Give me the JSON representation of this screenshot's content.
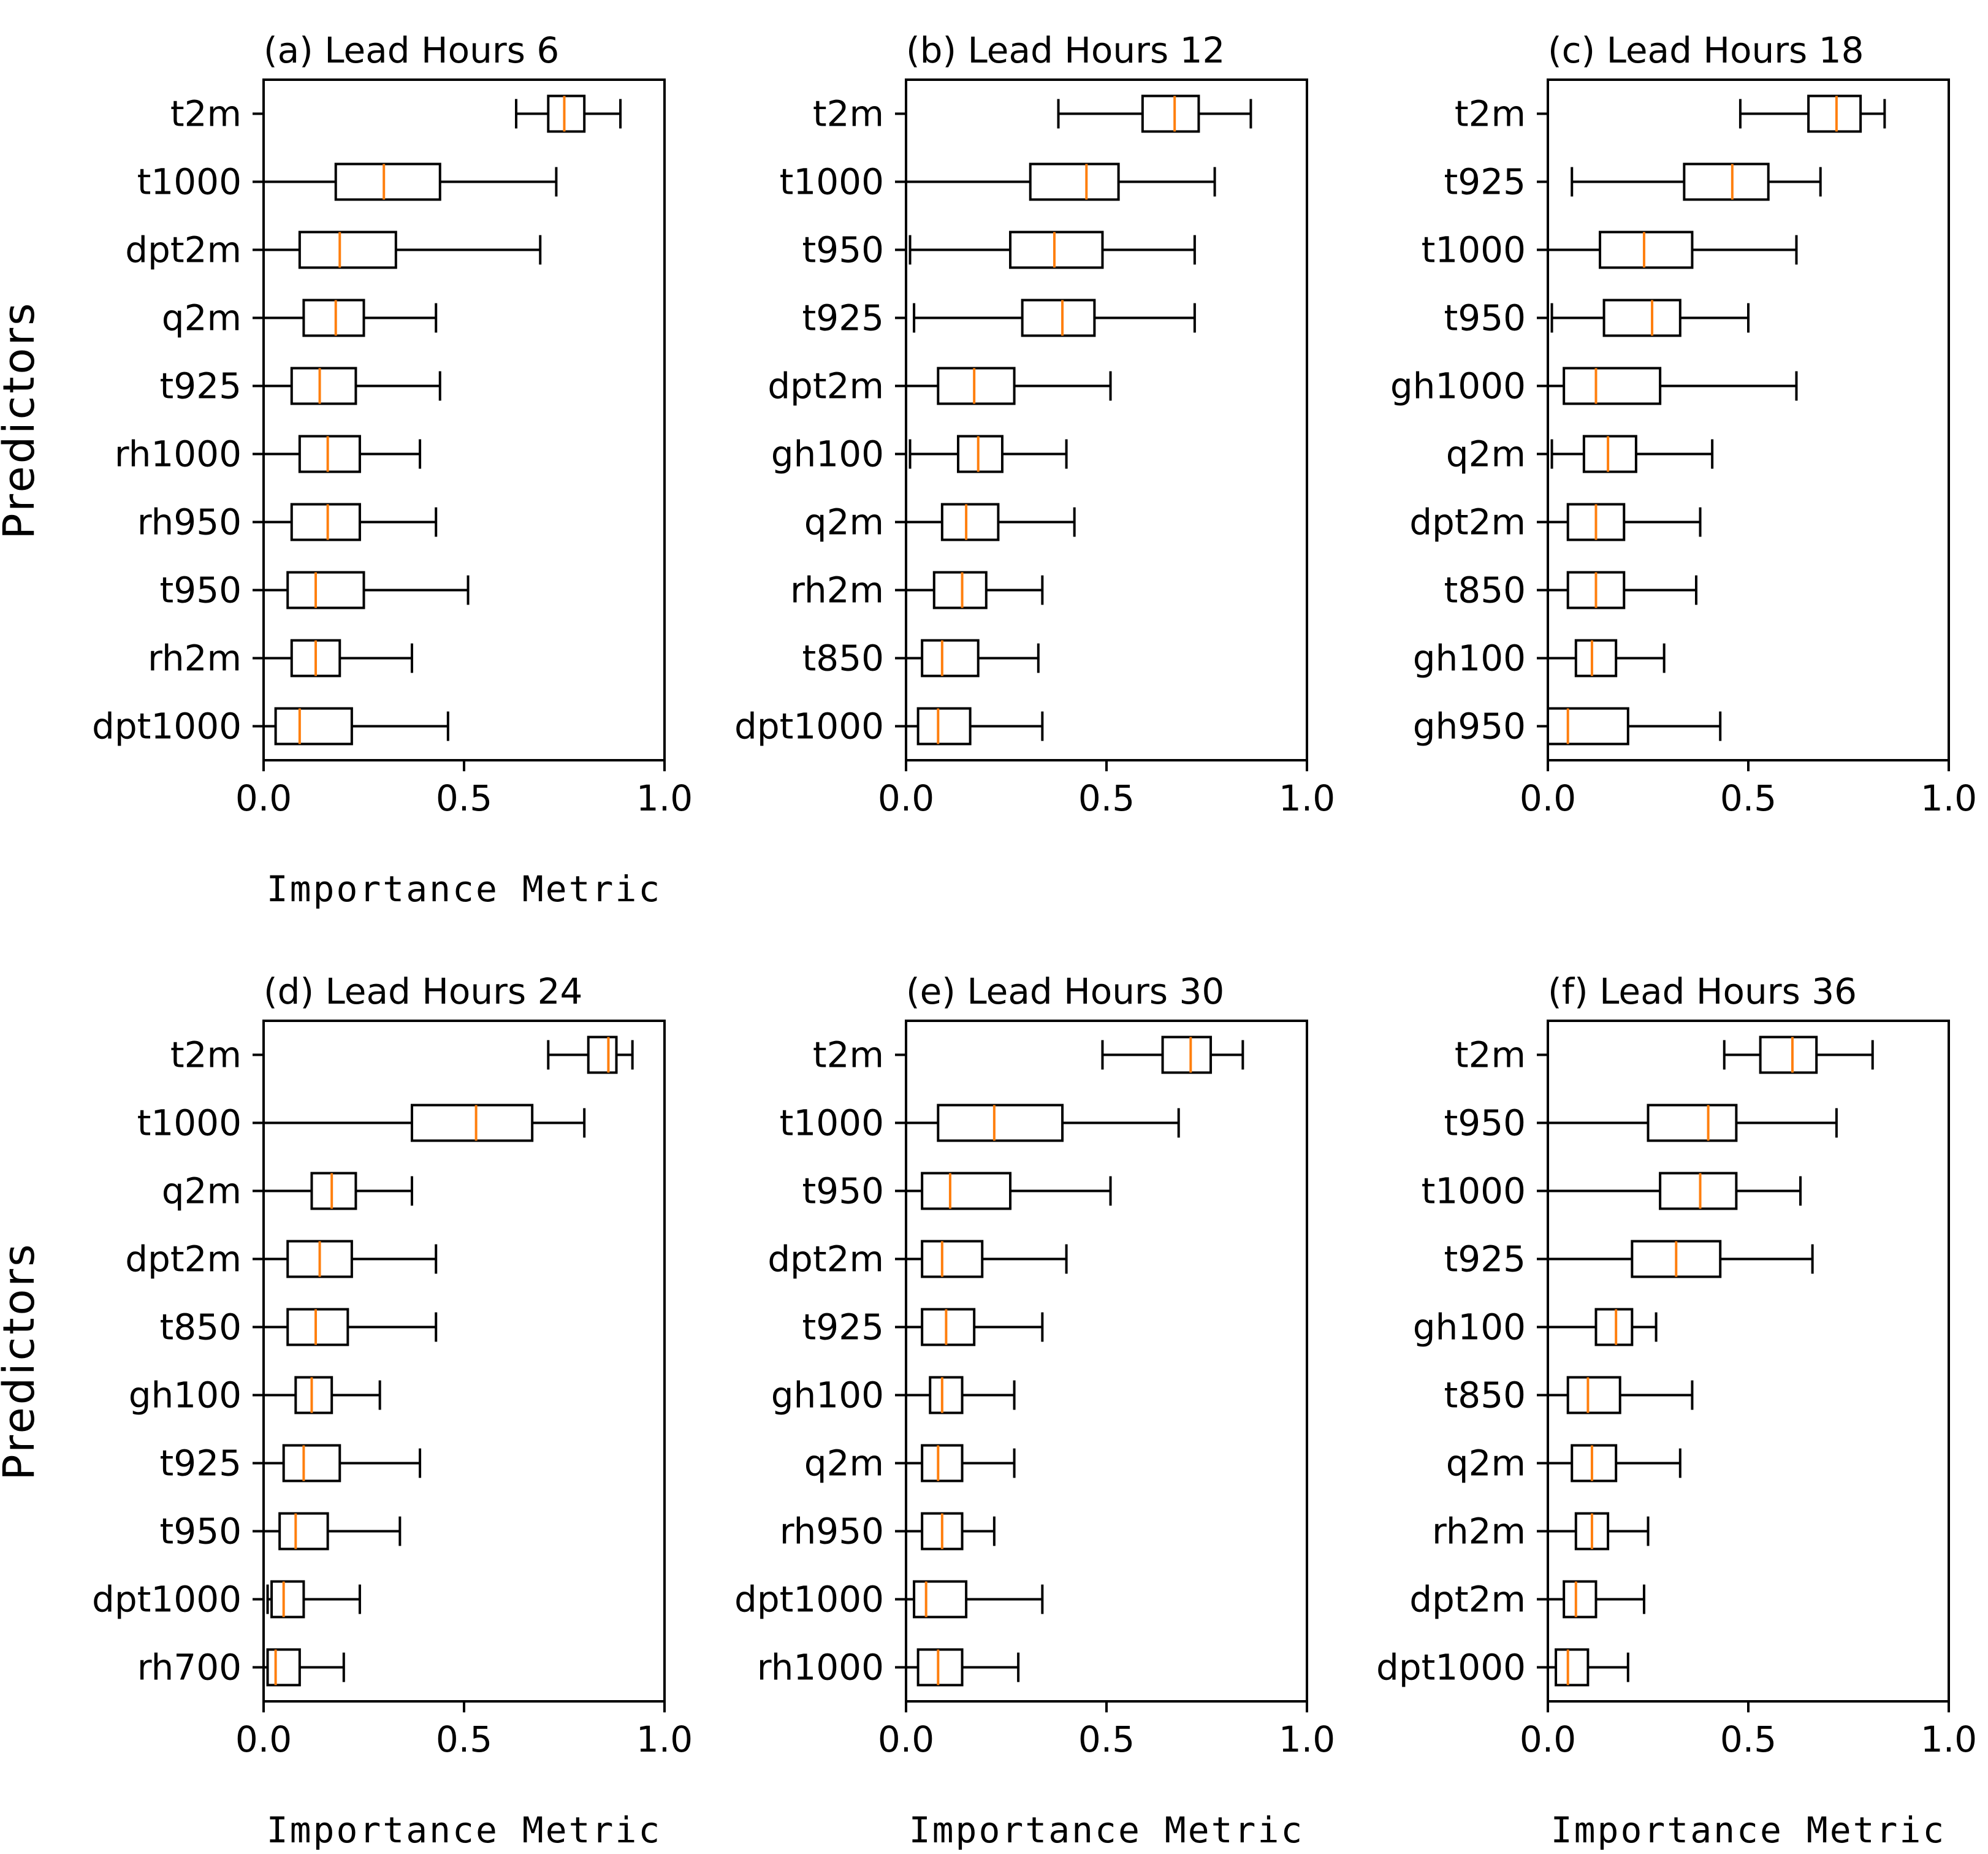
{
  "chart_data": [
    {
      "type": "boxplot",
      "title": "(a) Lead Hours 6",
      "xlabel": "Importance Metric",
      "ylabel": "Predictors",
      "xlim": [
        0,
        1
      ],
      "xticks": [
        "0.0",
        "0.5",
        "1.0"
      ],
      "categories": [
        "t2m",
        "t1000",
        "dpt2m",
        "q2m",
        "t925",
        "rh1000",
        "rh950",
        "t950",
        "rh2m",
        "dpt1000"
      ],
      "boxes": [
        {
          "whislo": 0.63,
          "q1": 0.71,
          "med": 0.75,
          "q3": 0.8,
          "whishi": 0.89
        },
        {
          "whislo": 0.0,
          "q1": 0.18,
          "med": 0.3,
          "q3": 0.44,
          "whishi": 0.73
        },
        {
          "whislo": 0.0,
          "q1": 0.09,
          "med": 0.19,
          "q3": 0.33,
          "whishi": 0.69
        },
        {
          "whislo": 0.0,
          "q1": 0.1,
          "med": 0.18,
          "q3": 0.25,
          "whishi": 0.43
        },
        {
          "whislo": 0.0,
          "q1": 0.07,
          "med": 0.14,
          "q3": 0.23,
          "whishi": 0.44
        },
        {
          "whislo": 0.0,
          "q1": 0.09,
          "med": 0.16,
          "q3": 0.24,
          "whishi": 0.39
        },
        {
          "whislo": 0.0,
          "q1": 0.07,
          "med": 0.16,
          "q3": 0.24,
          "whishi": 0.43
        },
        {
          "whislo": 0.0,
          "q1": 0.06,
          "med": 0.13,
          "q3": 0.25,
          "whishi": 0.51
        },
        {
          "whislo": 0.0,
          "q1": 0.07,
          "med": 0.13,
          "q3": 0.19,
          "whishi": 0.37
        },
        {
          "whislo": 0.0,
          "q1": 0.03,
          "med": 0.09,
          "q3": 0.22,
          "whishi": 0.46
        }
      ]
    },
    {
      "type": "boxplot",
      "title": "(b) Lead Hours 12",
      "xlabel": "",
      "ylabel": "",
      "xlim": [
        0,
        1
      ],
      "xticks": [
        "0.0",
        "0.5",
        "1.0"
      ],
      "categories": [
        "t2m",
        "t1000",
        "t950",
        "t925",
        "dpt2m",
        "gh100",
        "q2m",
        "rh2m",
        "t850",
        "dpt1000"
      ],
      "boxes": [
        {
          "whislo": 0.38,
          "q1": 0.59,
          "med": 0.67,
          "q3": 0.73,
          "whishi": 0.86
        },
        {
          "whislo": 0.0,
          "q1": 0.31,
          "med": 0.45,
          "q3": 0.53,
          "whishi": 0.77
        },
        {
          "whislo": 0.01,
          "q1": 0.26,
          "med": 0.37,
          "q3": 0.49,
          "whishi": 0.72
        },
        {
          "whislo": 0.02,
          "q1": 0.29,
          "med": 0.39,
          "q3": 0.47,
          "whishi": 0.72
        },
        {
          "whislo": 0.0,
          "q1": 0.08,
          "med": 0.17,
          "q3": 0.27,
          "whishi": 0.51
        },
        {
          "whislo": 0.01,
          "q1": 0.13,
          "med": 0.18,
          "q3": 0.24,
          "whishi": 0.4
        },
        {
          "whislo": 0.0,
          "q1": 0.09,
          "med": 0.15,
          "q3": 0.23,
          "whishi": 0.42
        },
        {
          "whislo": 0.0,
          "q1": 0.07,
          "med": 0.14,
          "q3": 0.2,
          "whishi": 0.34
        },
        {
          "whislo": 0.0,
          "q1": 0.04,
          "med": 0.09,
          "q3": 0.18,
          "whishi": 0.33
        },
        {
          "whislo": 0.0,
          "q1": 0.03,
          "med": 0.08,
          "q3": 0.16,
          "whishi": 0.34
        }
      ]
    },
    {
      "type": "boxplot",
      "title": "(c) Lead Hours 18",
      "xlabel": "",
      "ylabel": "",
      "xlim": [
        0,
        1
      ],
      "xticks": [
        "0.0",
        "0.5",
        "1.0"
      ],
      "categories": [
        "t2m",
        "t925",
        "t1000",
        "t950",
        "gh1000",
        "q2m",
        "dpt2m",
        "t850",
        "gh100",
        "gh950"
      ],
      "boxes": [
        {
          "whislo": 0.48,
          "q1": 0.65,
          "med": 0.72,
          "q3": 0.78,
          "whishi": 0.84
        },
        {
          "whislo": 0.06,
          "q1": 0.34,
          "med": 0.46,
          "q3": 0.55,
          "whishi": 0.68
        },
        {
          "whislo": 0.0,
          "q1": 0.13,
          "med": 0.24,
          "q3": 0.36,
          "whishi": 0.62
        },
        {
          "whislo": 0.01,
          "q1": 0.14,
          "med": 0.26,
          "q3": 0.33,
          "whishi": 0.5
        },
        {
          "whislo": 0.0,
          "q1": 0.04,
          "med": 0.12,
          "q3": 0.28,
          "whishi": 0.62
        },
        {
          "whislo": 0.01,
          "q1": 0.09,
          "med": 0.15,
          "q3": 0.22,
          "whishi": 0.41
        },
        {
          "whislo": 0.0,
          "q1": 0.05,
          "med": 0.12,
          "q3": 0.19,
          "whishi": 0.38
        },
        {
          "whislo": 0.0,
          "q1": 0.05,
          "med": 0.12,
          "q3": 0.19,
          "whishi": 0.37
        },
        {
          "whislo": 0.0,
          "q1": 0.07,
          "med": 0.11,
          "q3": 0.17,
          "whishi": 0.29
        },
        {
          "whislo": 0.0,
          "q1": 0.0,
          "med": 0.05,
          "q3": 0.2,
          "whishi": 0.43
        }
      ]
    },
    {
      "type": "boxplot",
      "title": "(d) Lead Hours 24",
      "xlabel": "Importance Metric",
      "ylabel": "Predictors",
      "xlim": [
        0,
        1
      ],
      "xticks": [
        "0.0",
        "0.5",
        "1.0"
      ],
      "categories": [
        "t2m",
        "t1000",
        "q2m",
        "dpt2m",
        "t850",
        "gh100",
        "t925",
        "t950",
        "dpt1000",
        "rh700"
      ],
      "boxes": [
        {
          "whislo": 0.71,
          "q1": 0.81,
          "med": 0.86,
          "q3": 0.88,
          "whishi": 0.92
        },
        {
          "whislo": 0.0,
          "q1": 0.37,
          "med": 0.53,
          "q3": 0.67,
          "whishi": 0.8
        },
        {
          "whislo": 0.0,
          "q1": 0.12,
          "med": 0.17,
          "q3": 0.23,
          "whishi": 0.37
        },
        {
          "whislo": 0.0,
          "q1": 0.06,
          "med": 0.14,
          "q3": 0.22,
          "whishi": 0.43
        },
        {
          "whislo": 0.0,
          "q1": 0.06,
          "med": 0.13,
          "q3": 0.21,
          "whishi": 0.43
        },
        {
          "whislo": 0.0,
          "q1": 0.08,
          "med": 0.12,
          "q3": 0.17,
          "whishi": 0.29
        },
        {
          "whislo": 0.0,
          "q1": 0.05,
          "med": 0.1,
          "q3": 0.19,
          "whishi": 0.39
        },
        {
          "whislo": 0.0,
          "q1": 0.04,
          "med": 0.08,
          "q3": 0.16,
          "whishi": 0.34
        },
        {
          "whislo": 0.01,
          "q1": 0.02,
          "med": 0.05,
          "q3": 0.1,
          "whishi": 0.24
        },
        {
          "whislo": 0.0,
          "q1": 0.01,
          "med": 0.03,
          "q3": 0.09,
          "whishi": 0.2
        }
      ]
    },
    {
      "type": "boxplot",
      "title": "(e) Lead Hours 30",
      "xlabel": "Importance Metric",
      "ylabel": "",
      "xlim": [
        0,
        1
      ],
      "xticks": [
        "0.0",
        "0.5",
        "1.0"
      ],
      "categories": [
        "t2m",
        "t1000",
        "t950",
        "dpt2m",
        "t925",
        "gh100",
        "q2m",
        "rh950",
        "dpt1000",
        "rh1000"
      ],
      "boxes": [
        {
          "whislo": 0.49,
          "q1": 0.64,
          "med": 0.71,
          "q3": 0.76,
          "whishi": 0.84
        },
        {
          "whislo": 0.0,
          "q1": 0.08,
          "med": 0.22,
          "q3": 0.39,
          "whishi": 0.68
        },
        {
          "whislo": 0.0,
          "q1": 0.04,
          "med": 0.11,
          "q3": 0.26,
          "whishi": 0.51
        },
        {
          "whislo": 0.0,
          "q1": 0.04,
          "med": 0.09,
          "q3": 0.19,
          "whishi": 0.4
        },
        {
          "whislo": 0.0,
          "q1": 0.04,
          "med": 0.1,
          "q3": 0.17,
          "whishi": 0.34
        },
        {
          "whislo": 0.0,
          "q1": 0.06,
          "med": 0.09,
          "q3": 0.14,
          "whishi": 0.27
        },
        {
          "whislo": 0.0,
          "q1": 0.04,
          "med": 0.08,
          "q3": 0.14,
          "whishi": 0.27
        },
        {
          "whislo": 0.0,
          "q1": 0.04,
          "med": 0.09,
          "q3": 0.14,
          "whishi": 0.22
        },
        {
          "whislo": 0.0,
          "q1": 0.02,
          "med": 0.05,
          "q3": 0.15,
          "whishi": 0.34
        },
        {
          "whislo": 0.0,
          "q1": 0.03,
          "med": 0.08,
          "q3": 0.14,
          "whishi": 0.28
        }
      ]
    },
    {
      "type": "boxplot",
      "title": "(f) Lead Hours 36",
      "xlabel": "Importance Metric",
      "ylabel": "",
      "xlim": [
        0,
        1
      ],
      "xticks": [
        "0.0",
        "0.5",
        "1.0"
      ],
      "categories": [
        "t2m",
        "t950",
        "t1000",
        "t925",
        "gh100",
        "t850",
        "q2m",
        "rh2m",
        "dpt2m",
        "dpt1000"
      ],
      "boxes": [
        {
          "whislo": 0.44,
          "q1": 0.53,
          "med": 0.61,
          "q3": 0.67,
          "whishi": 0.81
        },
        {
          "whislo": 0.0,
          "q1": 0.25,
          "med": 0.4,
          "q3": 0.47,
          "whishi": 0.72
        },
        {
          "whislo": 0.0,
          "q1": 0.28,
          "med": 0.38,
          "q3": 0.47,
          "whishi": 0.63
        },
        {
          "whislo": 0.0,
          "q1": 0.21,
          "med": 0.32,
          "q3": 0.43,
          "whishi": 0.66
        },
        {
          "whislo": 0.0,
          "q1": 0.12,
          "med": 0.17,
          "q3": 0.21,
          "whishi": 0.27
        },
        {
          "whislo": 0.0,
          "q1": 0.05,
          "med": 0.1,
          "q3": 0.18,
          "whishi": 0.36
        },
        {
          "whislo": 0.0,
          "q1": 0.06,
          "med": 0.11,
          "q3": 0.17,
          "whishi": 0.33
        },
        {
          "whislo": 0.0,
          "q1": 0.07,
          "med": 0.11,
          "q3": 0.15,
          "whishi": 0.25
        },
        {
          "whislo": 0.0,
          "q1": 0.04,
          "med": 0.07,
          "q3": 0.12,
          "whishi": 0.24
        },
        {
          "whislo": 0.0,
          "q1": 0.02,
          "med": 0.05,
          "q3": 0.1,
          "whishi": 0.2
        }
      ]
    }
  ],
  "colors": {
    "median": "#ff7f0e",
    "box": "#000000",
    "background": "#ffffff"
  }
}
